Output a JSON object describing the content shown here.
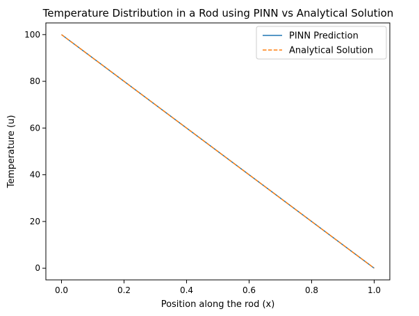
{
  "chart_data": {
    "type": "line",
    "title": "Temperature Distribution in a Rod using PINN vs Analytical Solution",
    "xlabel": "Position along the rod (x)",
    "ylabel": "Temperature (u)",
    "xlim": [
      -0.05,
      1.05
    ],
    "ylim": [
      -5,
      105
    ],
    "xticks": [
      "0.0",
      "0.2",
      "0.4",
      "0.6",
      "0.8",
      "1.0"
    ],
    "yticks": [
      "0",
      "20",
      "40",
      "60",
      "80",
      "100"
    ],
    "grid": false,
    "legend_position": "top-right",
    "series": [
      {
        "name": "PINN Prediction",
        "style": "solid",
        "color": "#1f77b4",
        "x": [
          0.0,
          1.0
        ],
        "y": [
          100,
          0
        ]
      },
      {
        "name": "Analytical Solution",
        "style": "dashed",
        "color": "#ff7f0e",
        "x": [
          0.0,
          1.0
        ],
        "y": [
          100,
          0
        ]
      }
    ]
  }
}
